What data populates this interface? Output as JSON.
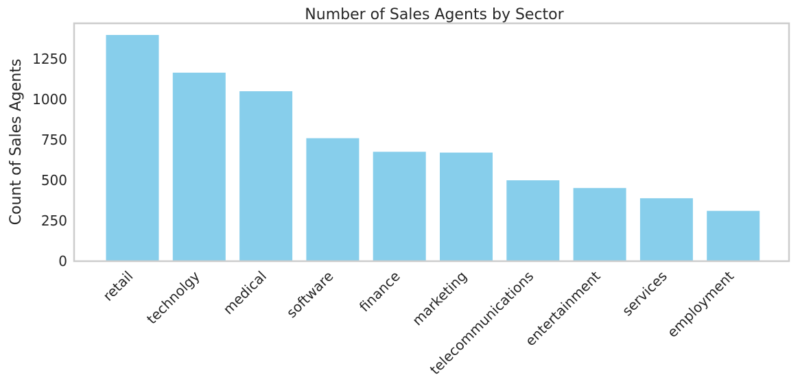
{
  "chart_data": {
    "type": "bar",
    "title": "Number of Sales Agents by Sector",
    "xlabel": "",
    "ylabel": "Count of Sales Agents",
    "categories": [
      "retail",
      "technolgy",
      "medical",
      "software",
      "finance",
      "marketing",
      "telecommunications",
      "entertainment",
      "services",
      "employment"
    ],
    "values": [
      1398,
      1165,
      1050,
      760,
      676,
      671,
      500,
      452,
      389,
      311
    ],
    "ylim": [
      0,
      1470
    ],
    "yticks": [
      0,
      250,
      500,
      750,
      1000,
      1250
    ],
    "grid": false,
    "legend": "none",
    "bar_color": "#87ceeb",
    "frame_color": "#cccccc",
    "text_color": "#262626"
  }
}
